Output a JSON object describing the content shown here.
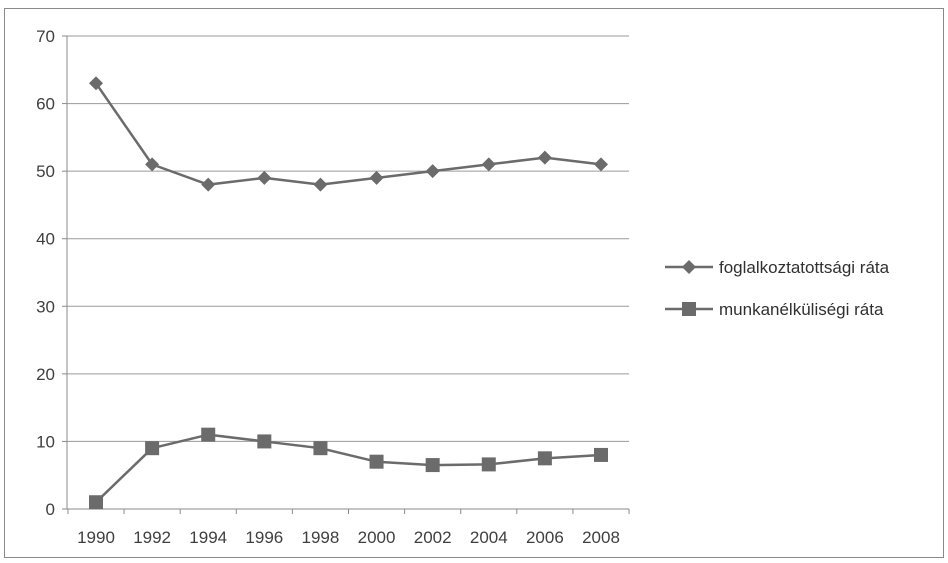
{
  "chart_data": {
    "type": "line",
    "x": [
      1990,
      1992,
      1994,
      1996,
      1998,
      2000,
      2002,
      2004,
      2006,
      2008
    ],
    "x_tick_labels": [
      "1990",
      "1992",
      "1994",
      "1996",
      "1998",
      "2000",
      "2002",
      "2004",
      "2006",
      "2008"
    ],
    "y_ticks": [
      0,
      10,
      20,
      30,
      40,
      50,
      60,
      70
    ],
    "y_tick_labels": [
      "0",
      "10",
      "20",
      "30",
      "40",
      "50",
      "60",
      "70"
    ],
    "ylim": [
      0,
      70
    ],
    "grid": "horizontal",
    "legend_position": "right",
    "series": [
      {
        "name": "foglalkoztatottsági ráta",
        "marker": "diamond",
        "color": "#6b6b6b",
        "values": [
          63,
          51,
          48,
          49,
          48,
          49,
          50,
          51,
          52,
          51
        ]
      },
      {
        "name": "munkanélküliségi ráta",
        "marker": "square",
        "color": "#6b6b6b",
        "values": [
          1,
          9,
          11,
          10,
          9,
          7,
          6.5,
          6.6,
          7.5,
          8
        ]
      }
    ]
  }
}
